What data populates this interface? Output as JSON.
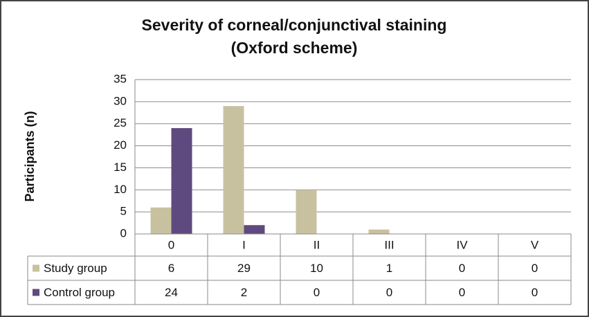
{
  "chart_data": {
    "type": "bar",
    "title": "Severity of corneal/conjunctival staining",
    "subtitle": "(Oxford scheme)",
    "y_label": "Participants (n)",
    "categories": [
      "0",
      "I",
      "II",
      "III",
      "IV",
      "V"
    ],
    "series": [
      {
        "name": "Study group",
        "color": "#c8c19f",
        "values": [
          6,
          29,
          10,
          1,
          0,
          0
        ]
      },
      {
        "name": "Control group",
        "color": "#5f4a7f",
        "values": [
          24,
          2,
          0,
          0,
          0,
          0
        ]
      }
    ],
    "ylim": [
      0,
      35
    ],
    "yticks": [
      0,
      5,
      10,
      15,
      20,
      25,
      30,
      35
    ],
    "grid": true,
    "data_table": true
  }
}
